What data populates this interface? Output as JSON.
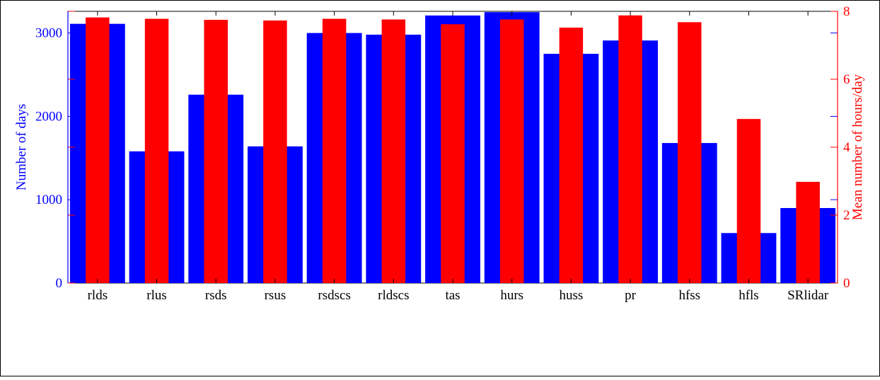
{
  "chart_data": {
    "type": "bar",
    "categories": [
      "rlds",
      "rlus",
      "rsds",
      "rsus",
      "rsdscs",
      "rldscs",
      "tas",
      "hurs",
      "huss",
      "pr",
      "hfss",
      "hfls",
      "SRlidar"
    ],
    "series": [
      {
        "axis": "left",
        "color": "#0000ff",
        "values": [
          3110,
          1580,
          2260,
          1640,
          3000,
          2980,
          3210,
          3250,
          2750,
          2910,
          1680,
          600,
          900
        ]
      },
      {
        "axis": "right",
        "color": "#ff0000",
        "values": [
          7.82,
          7.78,
          7.75,
          7.73,
          7.78,
          7.76,
          7.62,
          7.76,
          7.52,
          7.88,
          7.68,
          4.83,
          2.98
        ]
      }
    ],
    "ylabel": "Number of days",
    "ylabel_right": "Mean number of hours/day",
    "ylim": [
      0,
      3260
    ],
    "ylim_right": [
      0,
      8
    ],
    "yticks": [
      0,
      1000,
      2000,
      3000
    ],
    "yticks_right": [
      0,
      2,
      4,
      6,
      8
    ],
    "grid": false,
    "left_axis_color": "#0000ff",
    "right_axis_color": "#ff0000"
  }
}
